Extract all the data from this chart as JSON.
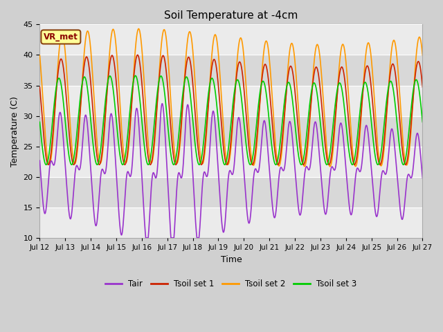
{
  "title": "Soil Temperature at -4cm",
  "xlabel": "Time",
  "ylabel": "Temperature (C)",
  "ylim": [
    10,
    45
  ],
  "xlim": [
    0,
    360
  ],
  "annotation": "VR_met",
  "fig_facecolor": "#d0d0d0",
  "plot_bg_color": "#e0e0e0",
  "colors": {
    "Tair": "#9933cc",
    "Tsoil1": "#cc2200",
    "Tsoil2": "#ff9900",
    "Tsoil3": "#00cc00"
  },
  "legend_labels": [
    "Tair",
    "Tsoil set 1",
    "Tsoil set 2",
    "Tsoil set 3"
  ],
  "yticks": [
    10,
    15,
    20,
    25,
    30,
    35,
    40,
    45
  ],
  "xtick_labels": [
    "Jul 12",
    "Jul 13",
    "Jul 14",
    "Jul 15",
    "Jul 16",
    "Jul 17",
    "Jul 18",
    "Jul 19",
    "Jul 20",
    "Jul 21",
    "Jul 22",
    "Jul 23",
    "Jul 24",
    "Jul 25",
    "Jul 26",
    "Jul 27"
  ],
  "xtick_positions": [
    0,
    24,
    48,
    72,
    96,
    120,
    144,
    168,
    192,
    216,
    240,
    264,
    288,
    312,
    336,
    360
  ]
}
